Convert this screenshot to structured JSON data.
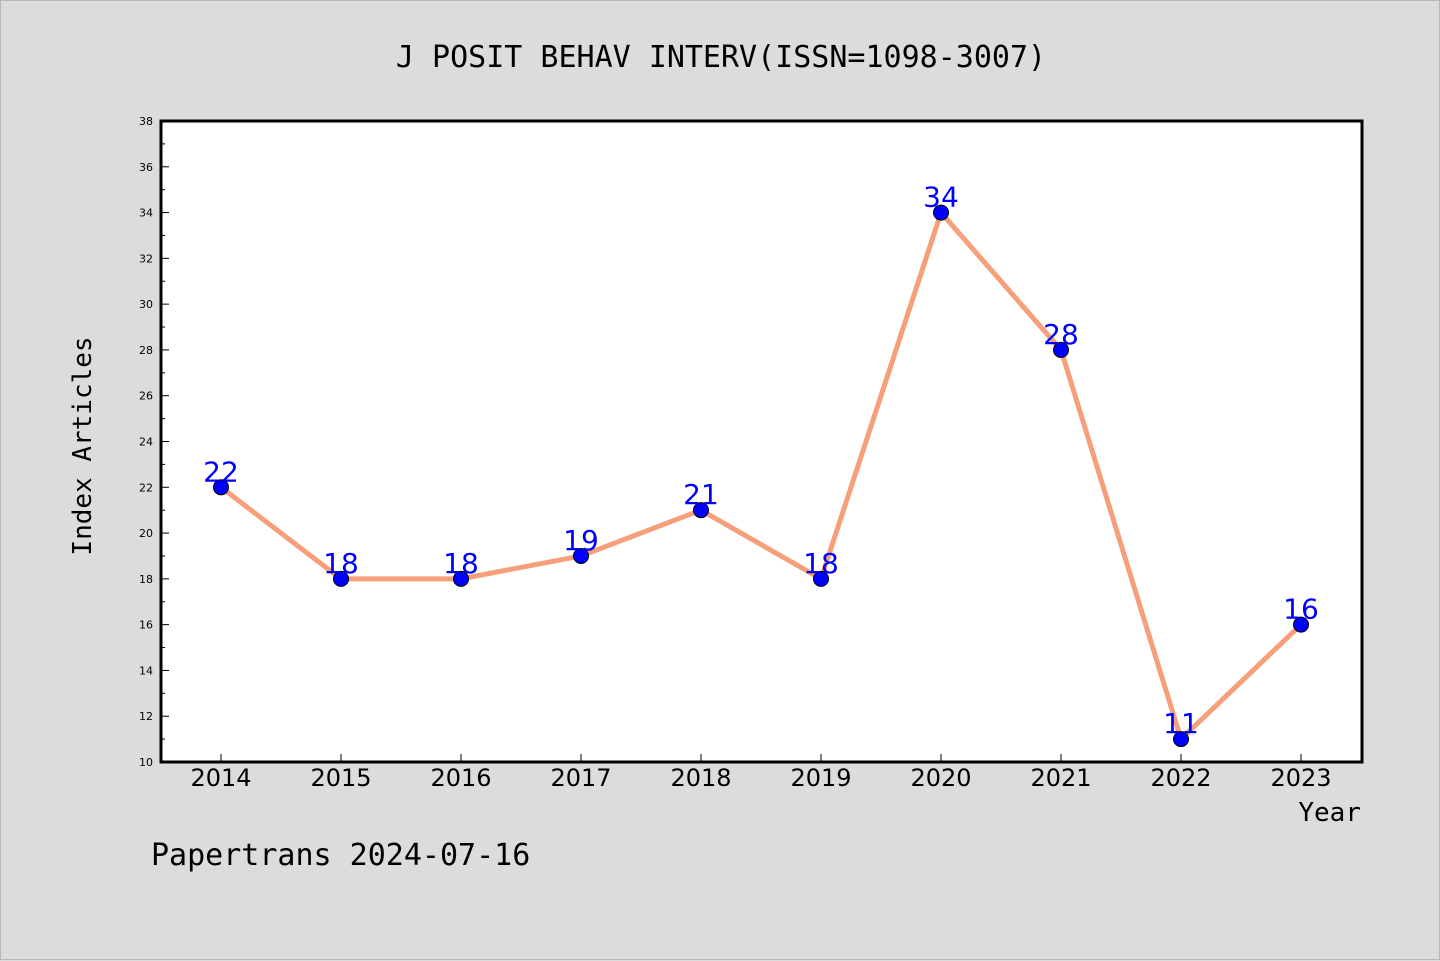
{
  "chart_data": {
    "type": "line",
    "title": "J POSIT BEHAV INTERV(ISSN=1098-3007)",
    "xlabel": "Year",
    "ylabel": "Index Articles",
    "categories": [
      "2014",
      "2015",
      "2016",
      "2017",
      "2018",
      "2019",
      "2020",
      "2021",
      "2022",
      "2023"
    ],
    "series": [
      {
        "values": [
          22,
          18,
          18,
          19,
          21,
          18,
          34,
          28,
          11,
          16
        ]
      }
    ],
    "ylim": [
      10,
      38
    ],
    "ytick_step": 2,
    "data_labels": true,
    "grid": false,
    "legend": "none",
    "colors": {
      "line": "#f5a07a",
      "marker": "#0000ff",
      "label": "#0000ff",
      "background": "#dcdcdc",
      "plot_area": "#ffffff"
    }
  },
  "footer": {
    "text": "Papertrans 2024-07-16"
  }
}
